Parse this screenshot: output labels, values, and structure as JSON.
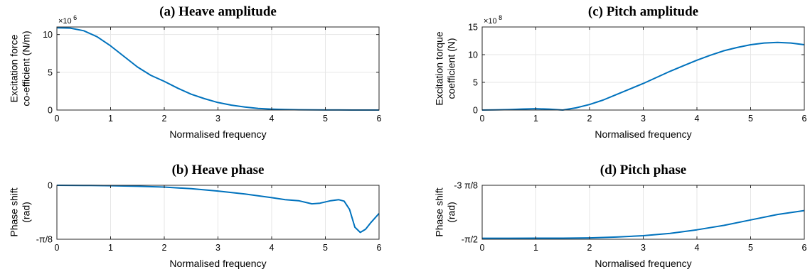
{
  "chart_data": [
    {
      "id": "a",
      "type": "line",
      "title": "(a) Heave amplitude",
      "xlabel": "Normalised frequency",
      "ylabel": [
        "Excitation force",
        "co-efficient (N/m)"
      ],
      "exponent_base": "×10",
      "exponent_power": "6",
      "xlim": [
        0,
        6
      ],
      "ylim": [
        0,
        11
      ],
      "xticks": [
        "0",
        "1",
        "2",
        "3",
        "4",
        "5",
        "6"
      ],
      "yticks": [
        {
          "value": 0,
          "label": "0"
        },
        {
          "value": 5,
          "label": "5"
        },
        {
          "value": 10,
          "label": "10"
        }
      ],
      "grid": true,
      "color": "#0072bd",
      "x": [
        0,
        0.25,
        0.5,
        0.75,
        1,
        1.25,
        1.5,
        1.75,
        2,
        2.25,
        2.5,
        2.75,
        3,
        3.25,
        3.5,
        3.75,
        4,
        4.25,
        4.5,
        4.75,
        5,
        5.25,
        5.5,
        5.75,
        6
      ],
      "y": [
        10.9,
        10.85,
        10.5,
        9.7,
        8.5,
        7.1,
        5.7,
        4.6,
        3.8,
        2.9,
        2.1,
        1.5,
        1.0,
        0.65,
        0.4,
        0.22,
        0.12,
        0.07,
        0.04,
        0.02,
        0.01,
        0.005,
        0.003,
        0.002,
        0.001
      ]
    },
    {
      "id": "c",
      "type": "line",
      "title": "(c) Pitch amplitude",
      "xlabel": "Normalised frequency",
      "ylabel": [
        "Excitation torque",
        "coefficient (N)"
      ],
      "exponent_base": "×10",
      "exponent_power": "8",
      "xlim": [
        0,
        6
      ],
      "ylim": [
        0,
        15
      ],
      "xticks": [
        "0",
        "1",
        "2",
        "3",
        "4",
        "5",
        "6"
      ],
      "yticks": [
        {
          "value": 0,
          "label": "0"
        },
        {
          "value": 5,
          "label": "5"
        },
        {
          "value": 10,
          "label": "10"
        },
        {
          "value": 15,
          "label": "15"
        }
      ],
      "grid": true,
      "color": "#0072bd",
      "x": [
        0,
        0.25,
        0.5,
        0.75,
        1,
        1.25,
        1.5,
        1.75,
        2,
        2.25,
        2.5,
        2.75,
        3,
        3.25,
        3.5,
        3.75,
        4,
        4.25,
        4.5,
        4.75,
        5,
        5.25,
        5.5,
        5.75,
        6
      ],
      "y": [
        0,
        0.02,
        0.08,
        0.18,
        0.25,
        0.15,
        0.0,
        0.4,
        1.0,
        1.8,
        2.8,
        3.8,
        4.8,
        5.9,
        7.0,
        8.0,
        9.0,
        9.9,
        10.7,
        11.3,
        11.8,
        12.1,
        12.2,
        12.1,
        11.8
      ]
    },
    {
      "id": "b",
      "type": "line",
      "title": "(b) Heave phase",
      "xlabel": "Normalised frequency",
      "ylabel": [
        "Phase shift",
        "(rad)"
      ],
      "xlim": [
        0,
        6
      ],
      "ylim": [
        -0.3927,
        0
      ],
      "xticks": [
        "0",
        "1",
        "2",
        "3",
        "4",
        "5",
        "6"
      ],
      "yticks": [
        {
          "value": 0,
          "label": "0"
        },
        {
          "value": -0.3927,
          "label": "-π/8"
        }
      ],
      "grid": true,
      "color": "#0072bd",
      "x": [
        0,
        0.5,
        1,
        1.5,
        2,
        2.5,
        3,
        3.5,
        4,
        4.25,
        4.5,
        4.75,
        4.9,
        5.1,
        5.25,
        5.35,
        5.45,
        5.55,
        5.65,
        5.75,
        5.85,
        6
      ],
      "y": [
        0,
        -0.001,
        -0.003,
        -0.007,
        -0.013,
        -0.025,
        -0.042,
        -0.063,
        -0.09,
        -0.105,
        -0.112,
        -0.135,
        -0.13,
        -0.112,
        -0.105,
        -0.115,
        -0.175,
        -0.305,
        -0.343,
        -0.32,
        -0.27,
        -0.205
      ]
    },
    {
      "id": "d",
      "type": "line",
      "title": "(d) Pitch phase",
      "xlabel": "Normalised frequency",
      "ylabel": [
        "Phase shift",
        "(rad)"
      ],
      "xlim": [
        0,
        6
      ],
      "ylim": [
        -1.5708,
        -1.1781
      ],
      "xticks": [
        "0",
        "1",
        "2",
        "3",
        "4",
        "5",
        "6"
      ],
      "yticks": [
        {
          "value": -1.1781,
          "label": "-3 π/8"
        },
        {
          "value": -1.5708,
          "label": "-π/2"
        }
      ],
      "grid": true,
      "color": "#0072bd",
      "x": [
        0,
        0.5,
        1,
        1.5,
        2,
        2.5,
        3,
        3.5,
        4,
        4.5,
        5,
        5.5,
        6
      ],
      "y": [
        -1.5635,
        -1.5635,
        -1.5633,
        -1.563,
        -1.561,
        -1.555,
        -1.545,
        -1.528,
        -1.502,
        -1.47,
        -1.43,
        -1.3905,
        -1.362
      ]
    }
  ]
}
